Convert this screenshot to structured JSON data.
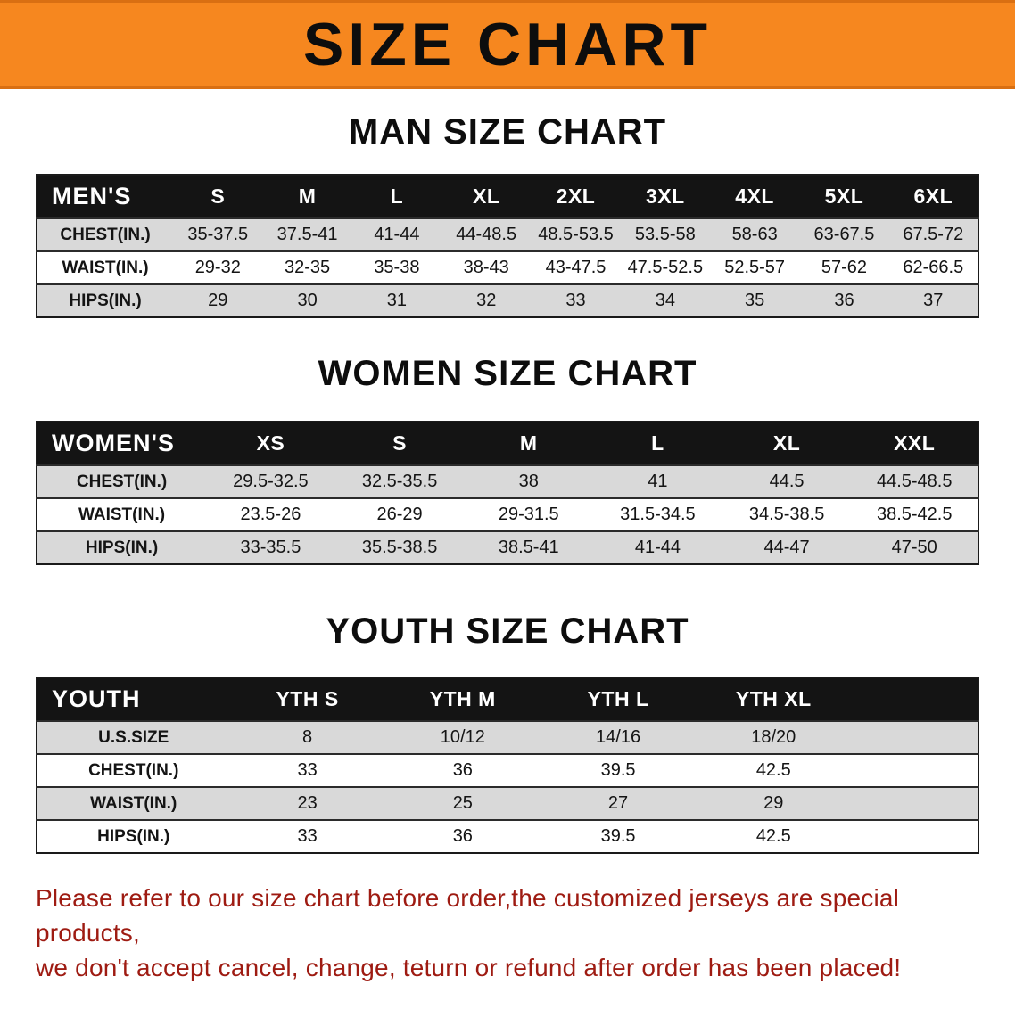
{
  "banner": {
    "title": "SIZE CHART"
  },
  "colors": {
    "banner-bg": "#F6871F",
    "header-bg": "#141414",
    "shaded-row": "#D9D9D9",
    "disclaimer-red": "#9E1B12"
  },
  "sections": [
    {
      "title": "MAN SIZE CHART",
      "header": [
        "MEN'S",
        "S",
        "M",
        "L",
        "XL",
        "2XL",
        "3XL",
        "4XL",
        "5XL",
        "6XL"
      ],
      "rows": [
        [
          "CHEST(IN.)",
          "35-37.5",
          "37.5-41",
          "41-44",
          "44-48.5",
          "48.5-53.5",
          "53.5-58",
          "58-63",
          "63-67.5",
          "67.5-72"
        ],
        [
          "WAIST(IN.)",
          "29-32",
          "32-35",
          "35-38",
          "38-43",
          "43-47.5",
          "47.5-52.5",
          "52.5-57",
          "57-62",
          "62-66.5"
        ],
        [
          "HIPS(IN.)",
          "29",
          "30",
          "31",
          "32",
          "33",
          "34",
          "35",
          "36",
          "37"
        ]
      ]
    },
    {
      "title": "WOMEN SIZE CHART",
      "header": [
        "WOMEN'S",
        "XS",
        "S",
        "M",
        "L",
        "XL",
        "XXL"
      ],
      "rows": [
        [
          "CHEST(IN.)",
          "29.5-32.5",
          "32.5-35.5",
          "38",
          "41",
          "44.5",
          "44.5-48.5"
        ],
        [
          "WAIST(IN.)",
          "23.5-26",
          "26-29",
          "29-31.5",
          "31.5-34.5",
          "34.5-38.5",
          "38.5-42.5"
        ],
        [
          "HIPS(IN.)",
          "33-35.5",
          "35.5-38.5",
          "38.5-41",
          "41-44",
          "44-47",
          "47-50"
        ]
      ]
    },
    {
      "title": "YOUTH SIZE CHART",
      "header": [
        "YOUTH",
        "YTH S",
        "YTH M",
        "YTH L",
        "YTH XL"
      ],
      "rows": [
        [
          "U.S.SIZE",
          "8",
          "10/12",
          "14/16",
          "18/20"
        ],
        [
          "CHEST(IN.)",
          "33",
          "36",
          "39.5",
          "42.5"
        ],
        [
          "WAIST(IN.)",
          "23",
          "25",
          "27",
          "29"
        ],
        [
          "HIPS(IN.)",
          "33",
          "36",
          "39.5",
          "42.5"
        ]
      ]
    }
  ],
  "footer": {
    "line1": "Please refer to our size chart before order,the customized jerseys are special products,",
    "line2": "we don't accept cancel, change, teturn or refund after order has been placed!"
  }
}
